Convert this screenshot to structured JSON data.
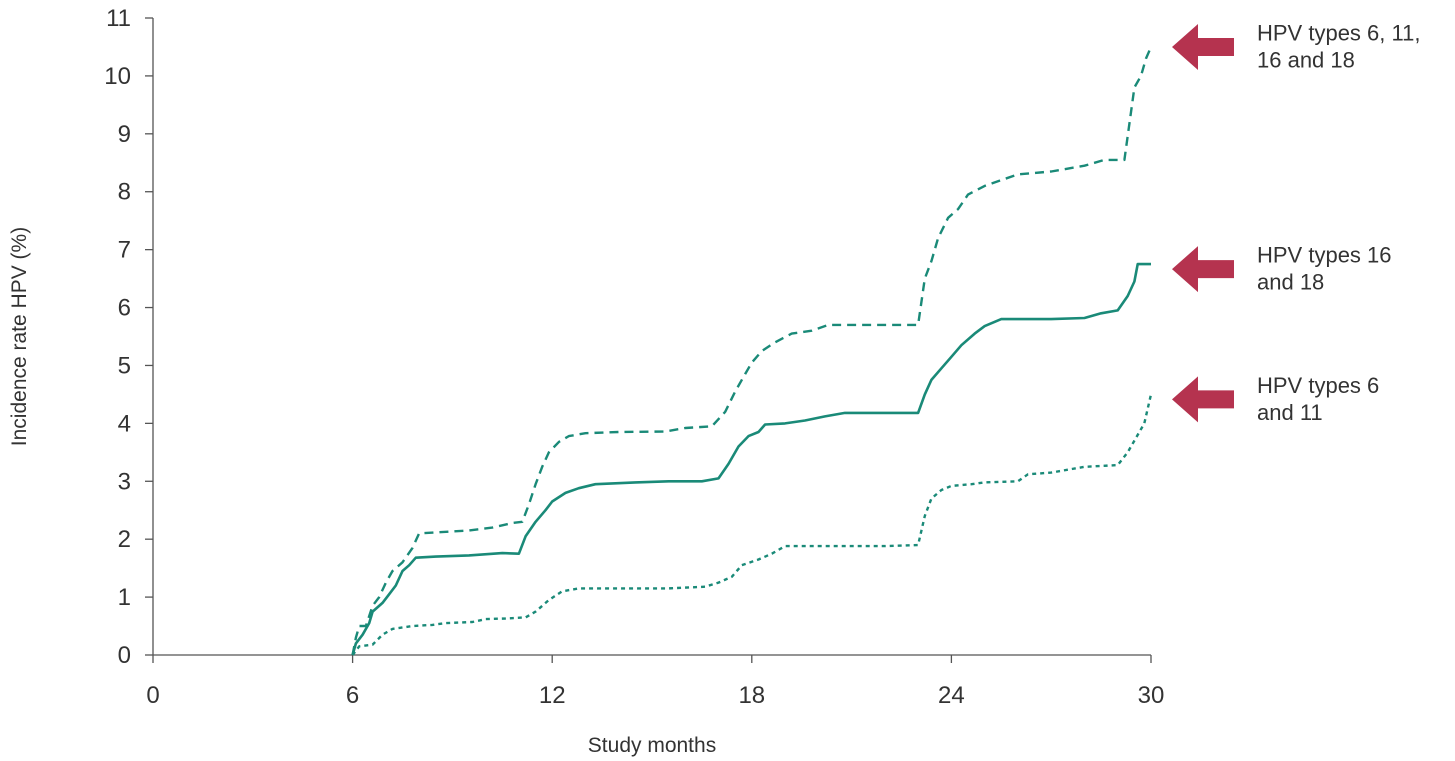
{
  "chart_data": {
    "type": "line",
    "title": "",
    "xlabel": "Study months",
    "ylabel": "Incidence rate HPV (%)",
    "xlim": [
      0,
      30
    ],
    "ylim": [
      0,
      11
    ],
    "x_ticks": [
      "0",
      "6",
      "12",
      "18",
      "24",
      "30"
    ],
    "y_ticks": [
      "0",
      "1",
      "2",
      "3",
      "4",
      "5",
      "6",
      "7",
      "8",
      "9",
      "10",
      "11"
    ],
    "grid": false,
    "legend_position": "right",
    "colors": {
      "line": "#1a8a78",
      "arrow": "#b5334f",
      "axis": "#555555",
      "text": "#333333"
    },
    "series": [
      {
        "name": "HPV types 6, 11, 16 and 18",
        "style": "dashed",
        "label_lines": [
          "HPV types 6, 11,",
          "16 and 18"
        ],
        "points": [
          [
            6.0,
            0.0
          ],
          [
            6.1,
            0.3
          ],
          [
            6.2,
            0.5
          ],
          [
            6.4,
            0.5
          ],
          [
            6.6,
            0.85
          ],
          [
            6.8,
            1.0
          ],
          [
            7.0,
            1.25
          ],
          [
            7.2,
            1.45
          ],
          [
            7.5,
            1.6
          ],
          [
            7.8,
            1.85
          ],
          [
            8.0,
            2.1
          ],
          [
            8.6,
            2.12
          ],
          [
            9.5,
            2.15
          ],
          [
            10.2,
            2.2
          ],
          [
            10.8,
            2.28
          ],
          [
            11.1,
            2.3
          ],
          [
            11.3,
            2.6
          ],
          [
            11.5,
            2.95
          ],
          [
            11.7,
            3.25
          ],
          [
            11.9,
            3.5
          ],
          [
            12.2,
            3.68
          ],
          [
            12.5,
            3.78
          ],
          [
            13.0,
            3.83
          ],
          [
            14.0,
            3.85
          ],
          [
            15.4,
            3.86
          ],
          [
            16.0,
            3.92
          ],
          [
            16.8,
            3.95
          ],
          [
            17.2,
            4.2
          ],
          [
            17.5,
            4.55
          ],
          [
            17.8,
            4.85
          ],
          [
            18.0,
            5.05
          ],
          [
            18.3,
            5.25
          ],
          [
            18.7,
            5.4
          ],
          [
            19.2,
            5.55
          ],
          [
            19.8,
            5.6
          ],
          [
            20.3,
            5.7
          ],
          [
            21.3,
            5.7
          ],
          [
            22.3,
            5.7
          ],
          [
            23.0,
            5.7
          ],
          [
            23.2,
            6.5
          ],
          [
            23.4,
            6.8
          ],
          [
            23.6,
            7.2
          ],
          [
            23.9,
            7.55
          ],
          [
            24.2,
            7.7
          ],
          [
            24.5,
            7.95
          ],
          [
            25.0,
            8.1
          ],
          [
            25.5,
            8.2
          ],
          [
            26.0,
            8.3
          ],
          [
            27.0,
            8.35
          ],
          [
            28.0,
            8.45
          ],
          [
            28.6,
            8.55
          ],
          [
            29.2,
            8.55
          ],
          [
            29.5,
            9.8
          ],
          [
            29.7,
            10.0
          ],
          [
            29.85,
            10.3
          ],
          [
            30.0,
            10.5
          ]
        ]
      },
      {
        "name": "HPV types 16 and 18",
        "style": "solid",
        "label_lines": [
          "HPV types 16",
          "and 18"
        ],
        "points": [
          [
            6.0,
            0.0
          ],
          [
            6.1,
            0.2
          ],
          [
            6.3,
            0.35
          ],
          [
            6.5,
            0.55
          ],
          [
            6.6,
            0.75
          ],
          [
            6.9,
            0.9
          ],
          [
            7.1,
            1.05
          ],
          [
            7.3,
            1.2
          ],
          [
            7.5,
            1.45
          ],
          [
            7.7,
            1.55
          ],
          [
            7.9,
            1.68
          ],
          [
            8.5,
            1.7
          ],
          [
            9.5,
            1.72
          ],
          [
            10.5,
            1.76
          ],
          [
            11.0,
            1.75
          ],
          [
            11.2,
            2.05
          ],
          [
            11.5,
            2.3
          ],
          [
            11.8,
            2.5
          ],
          [
            12.0,
            2.65
          ],
          [
            12.4,
            2.8
          ],
          [
            12.8,
            2.88
          ],
          [
            13.3,
            2.95
          ],
          [
            14.5,
            2.98
          ],
          [
            15.5,
            3.0
          ],
          [
            16.5,
            3.0
          ],
          [
            17.0,
            3.05
          ],
          [
            17.3,
            3.3
          ],
          [
            17.6,
            3.6
          ],
          [
            17.9,
            3.78
          ],
          [
            18.2,
            3.85
          ],
          [
            18.4,
            3.98
          ],
          [
            19.0,
            4.0
          ],
          [
            19.6,
            4.05
          ],
          [
            20.2,
            4.12
          ],
          [
            20.8,
            4.18
          ],
          [
            22.0,
            4.18
          ],
          [
            23.0,
            4.18
          ],
          [
            23.2,
            4.5
          ],
          [
            23.4,
            4.75
          ],
          [
            23.7,
            4.95
          ],
          [
            24.0,
            5.15
          ],
          [
            24.3,
            5.35
          ],
          [
            24.7,
            5.55
          ],
          [
            25.0,
            5.68
          ],
          [
            25.5,
            5.8
          ],
          [
            26.0,
            5.8
          ],
          [
            27.0,
            5.8
          ],
          [
            28.0,
            5.82
          ],
          [
            28.5,
            5.9
          ],
          [
            29.0,
            5.95
          ],
          [
            29.3,
            6.2
          ],
          [
            29.5,
            6.45
          ],
          [
            29.6,
            6.75
          ],
          [
            30.0,
            6.75
          ]
        ]
      },
      {
        "name": "HPV types 6 and 11",
        "style": "dotted",
        "label_lines": [
          "HPV types 6",
          "and 11"
        ],
        "points": [
          [
            6.0,
            0.0
          ],
          [
            6.2,
            0.15
          ],
          [
            6.6,
            0.18
          ],
          [
            6.9,
            0.35
          ],
          [
            7.2,
            0.45
          ],
          [
            7.8,
            0.5
          ],
          [
            8.4,
            0.52
          ],
          [
            8.8,
            0.55
          ],
          [
            9.6,
            0.57
          ],
          [
            10.0,
            0.62
          ],
          [
            10.6,
            0.63
          ],
          [
            11.2,
            0.65
          ],
          [
            11.5,
            0.75
          ],
          [
            11.9,
            0.95
          ],
          [
            12.3,
            1.1
          ],
          [
            12.8,
            1.15
          ],
          [
            14.0,
            1.15
          ],
          [
            15.5,
            1.15
          ],
          [
            16.6,
            1.18
          ],
          [
            17.0,
            1.25
          ],
          [
            17.4,
            1.35
          ],
          [
            17.7,
            1.55
          ],
          [
            18.2,
            1.65
          ],
          [
            18.6,
            1.75
          ],
          [
            19.0,
            1.88
          ],
          [
            20.0,
            1.88
          ],
          [
            21.0,
            1.88
          ],
          [
            22.0,
            1.88
          ],
          [
            23.0,
            1.9
          ],
          [
            23.2,
            2.4
          ],
          [
            23.4,
            2.7
          ],
          [
            23.7,
            2.85
          ],
          [
            24.0,
            2.92
          ],
          [
            24.6,
            2.95
          ],
          [
            25.0,
            2.98
          ],
          [
            26.0,
            3.0
          ],
          [
            26.3,
            3.12
          ],
          [
            27.0,
            3.15
          ],
          [
            27.5,
            3.2
          ],
          [
            28.0,
            3.25
          ],
          [
            29.0,
            3.28
          ],
          [
            29.3,
            3.5
          ],
          [
            29.6,
            3.8
          ],
          [
            29.8,
            4.0
          ],
          [
            30.0,
            4.5
          ]
        ]
      }
    ]
  }
}
